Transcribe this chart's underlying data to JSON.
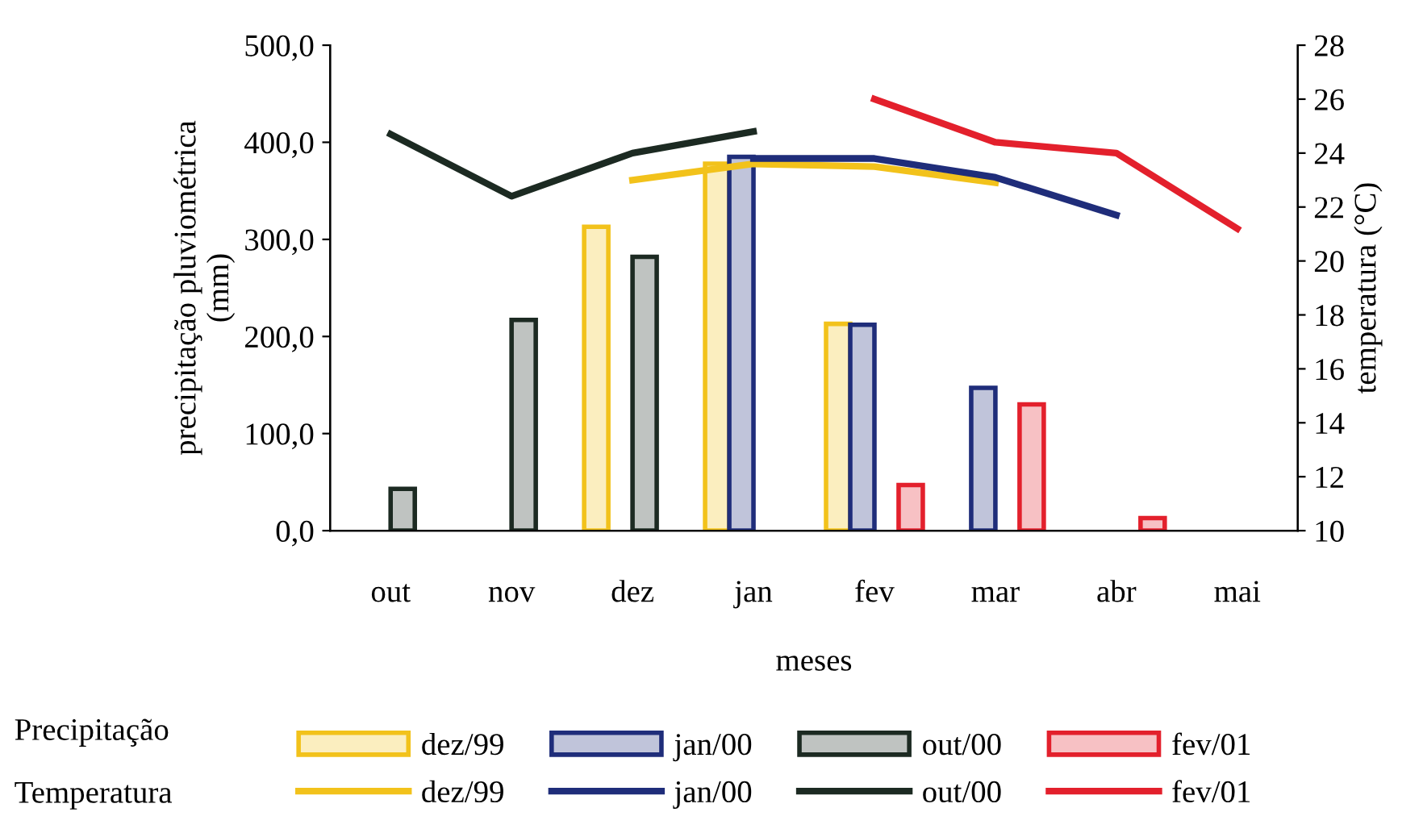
{
  "chart_data": {
    "type": "bar",
    "xlabel": "meses",
    "ylabel": "precipitação pluviométrica\n(mm)",
    "y2label": "temperatura (°C)",
    "categories": [
      "out",
      "nov",
      "dez",
      "jan",
      "fev",
      "mar",
      "abr",
      "mai"
    ],
    "series": [
      {
        "name": "dez/99",
        "color": "#f2c21b",
        "values": [
          null,
          null,
          313,
          378,
          213,
          null,
          null,
          null
        ]
      },
      {
        "name": "jan/00",
        "color": "#1f2d7a",
        "values": [
          null,
          null,
          null,
          385,
          212,
          147,
          null,
          null
        ]
      },
      {
        "name": "out/00",
        "color": "#1c2a22",
        "values": [
          43,
          217,
          282,
          null,
          null,
          null,
          null,
          null
        ]
      },
      {
        "name": "fev/01",
        "color": "#e3202c",
        "values": [
          null,
          null,
          null,
          null,
          47,
          130,
          13,
          null
        ]
      },
      {
        "name": "dez/99",
        "type": "line",
        "axis": "y2",
        "color": "#f2c21b",
        "values": [
          null,
          null,
          23.0,
          23.6,
          23.5,
          22.9,
          null,
          null
        ]
      },
      {
        "name": "jan/00",
        "type": "line",
        "axis": "y2",
        "color": "#1f2d7a",
        "values": [
          null,
          null,
          null,
          23.8,
          23.8,
          23.1,
          21.7,
          null
        ]
      },
      {
        "name": "out/00",
        "type": "line",
        "axis": "y2",
        "color": "#1c2a22",
        "values": [
          24.7,
          22.4,
          24.0,
          24.8,
          null,
          null,
          null,
          null
        ]
      },
      {
        "name": "fev/01",
        "type": "line",
        "axis": "y2",
        "color": "#e3202c",
        "values": [
          null,
          null,
          null,
          null,
          26.0,
          24.4,
          24.0,
          21.2
        ]
      }
    ],
    "ylim": [
      0,
      500
    ],
    "yticks": [
      {
        "value": 0,
        "label": "0,0"
      },
      {
        "value": 100,
        "label": "100,0"
      },
      {
        "value": 200,
        "label": "200,0"
      },
      {
        "value": 300,
        "label": "300,0"
      },
      {
        "value": 400,
        "label": "400,0"
      },
      {
        "value": 500,
        "label": "500,0"
      }
    ],
    "y2lim": [
      10,
      28
    ],
    "y2ticks": [
      10,
      12,
      14,
      16,
      18,
      20,
      22,
      24,
      26,
      28
    ],
    "annotations": [
      "Precipitação",
      "Temperatura"
    ],
    "legend": "bottom",
    "grid": false
  }
}
